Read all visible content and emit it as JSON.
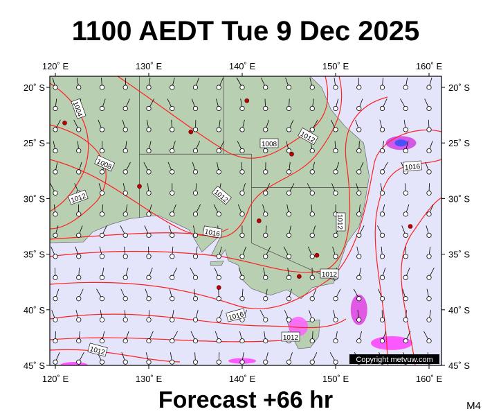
{
  "title": "1100 AEDT Tue 9 Dec 2025",
  "lon_labels": [
    "120˚ E",
    "130˚ E",
    "140˚ E",
    "150˚ E",
    "160˚ E"
  ],
  "lat_labels": [
    "20˚ S",
    "25˚ S",
    "30˚ S",
    "35˚ S",
    "40˚ S",
    "45˚ S"
  ],
  "isobar_labels": [
    "1004",
    "1008",
    "1012",
    "1008",
    "1012",
    "1012",
    "1016",
    "1012",
    "1012",
    "1016",
    "1012",
    "1012",
    "1016"
  ],
  "copyright": "Copyright metvuw.com",
  "footer": "Forecast +66 hr",
  "code": "M4"
}
